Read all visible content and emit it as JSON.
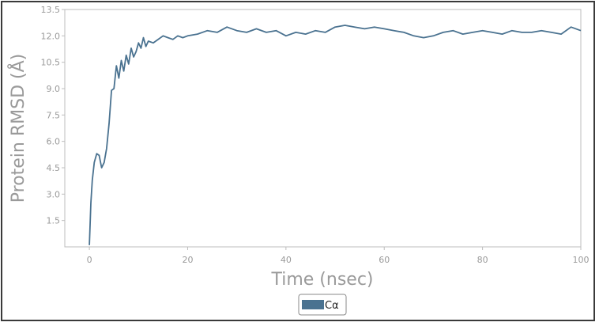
{
  "chart_data": {
    "type": "line",
    "xlabel": "Time (nsec)",
    "ylabel": "Protein RMSD (Å)",
    "xlim": [
      -5,
      100
    ],
    "ylim": [
      0,
      13.5
    ],
    "xticks": [
      0,
      20,
      40,
      60,
      80,
      100
    ],
    "yticks": [
      1.5,
      3.0,
      4.5,
      6.0,
      7.5,
      9.0,
      10.5,
      12.0,
      13.5
    ],
    "xtick_labels": [
      "0",
      "20",
      "40",
      "60",
      "80",
      "100"
    ],
    "ytick_labels": [
      "1.5",
      "3.0",
      "4.5",
      "6.0",
      "7.5",
      "9.0",
      "10.5",
      "12.0",
      "13.5"
    ],
    "grid": false,
    "legend_position": "bottom-center",
    "series": [
      {
        "name": "Cα",
        "color": "#4a7290",
        "x": [
          0,
          0.3,
          0.6,
          1.0,
          1.5,
          2.0,
          2.5,
          3.0,
          3.5,
          4.0,
          4.5,
          5.0,
          5.5,
          6.0,
          6.5,
          7.0,
          7.5,
          8.0,
          8.5,
          9.0,
          9.5,
          10.0,
          10.5,
          11.0,
          11.5,
          12.0,
          13,
          14,
          15,
          16,
          17,
          18,
          19,
          20,
          22,
          24,
          26,
          28,
          30,
          32,
          34,
          36,
          38,
          40,
          42,
          44,
          46,
          48,
          50,
          52,
          54,
          56,
          58,
          60,
          62,
          64,
          66,
          68,
          70,
          72,
          74,
          76,
          78,
          80,
          82,
          84,
          86,
          88,
          90,
          92,
          94,
          96,
          98,
          100
        ],
        "values": [
          0.1,
          2.5,
          3.8,
          4.8,
          5.3,
          5.2,
          4.5,
          4.8,
          5.6,
          7.0,
          8.9,
          9.0,
          10.3,
          9.6,
          10.6,
          10.0,
          10.9,
          10.4,
          11.3,
          10.8,
          11.1,
          11.6,
          11.3,
          11.9,
          11.4,
          11.7,
          11.6,
          11.8,
          12.0,
          11.9,
          11.8,
          12.0,
          11.9,
          12.0,
          12.1,
          12.3,
          12.2,
          12.5,
          12.3,
          12.2,
          12.4,
          12.2,
          12.3,
          12.0,
          12.2,
          12.1,
          12.3,
          12.2,
          12.5,
          12.6,
          12.5,
          12.4,
          12.5,
          12.4,
          12.3,
          12.2,
          12.0,
          11.9,
          12.0,
          12.2,
          12.3,
          12.1,
          12.2,
          12.3,
          12.2,
          12.1,
          12.3,
          12.2,
          12.2,
          12.3,
          12.2,
          12.1,
          12.5,
          12.3
        ]
      }
    ]
  }
}
